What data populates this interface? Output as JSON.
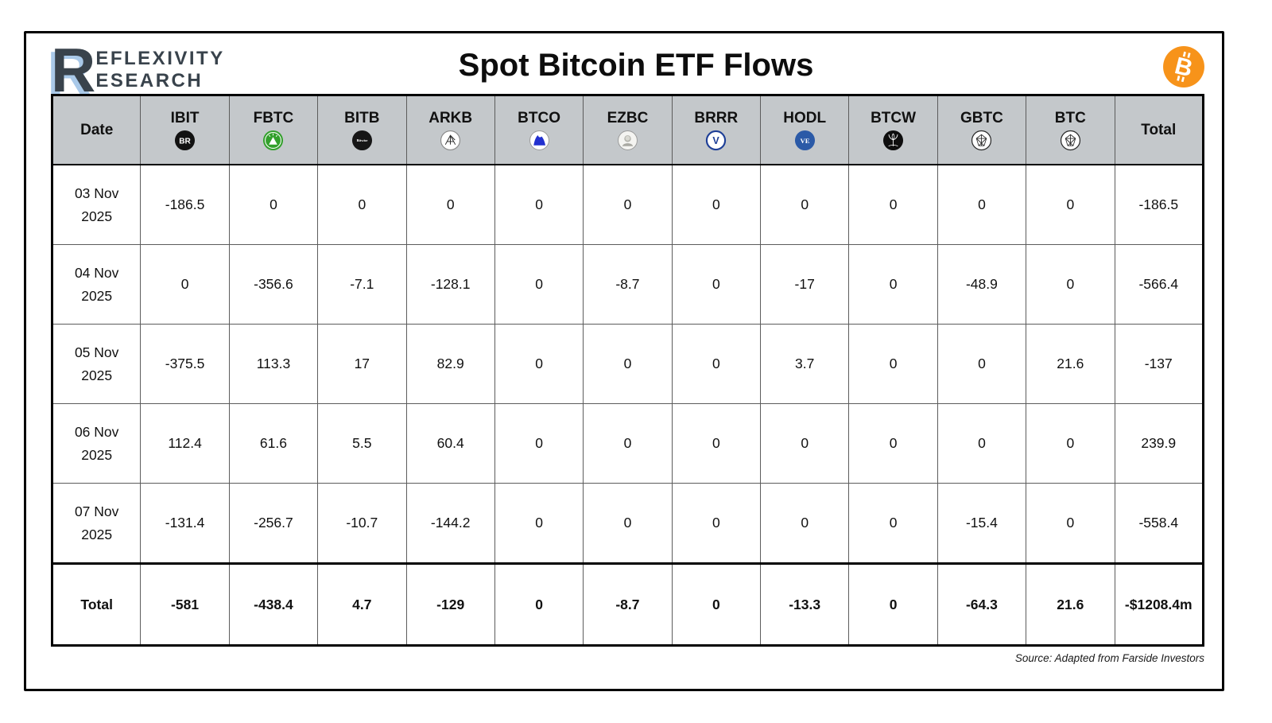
{
  "header": {
    "logo_letter": "R",
    "logo_line1": "EFLEXIVITY",
    "logo_line2": "ESEARCH",
    "title": "Spot Bitcoin ETF Flows",
    "bitcoin_icon": "bitcoin-icon"
  },
  "chart_data": {
    "type": "table",
    "title": "Spot Bitcoin ETF Flows",
    "columns": [
      "Date",
      "IBIT",
      "FBTC",
      "BITB",
      "ARKB",
      "BTCO",
      "EZBC",
      "BRRR",
      "HODL",
      "BTCW",
      "GBTC",
      "BTC",
      "Total"
    ],
    "column_icons": [
      null,
      "blackrock-icon",
      "fidelity-icon",
      "bitwise-icon",
      "ark-invest-icon",
      "invesco-icon",
      "franklin-templeton-icon",
      "valkyrie-icon",
      "vaneck-icon",
      "wisdomtree-icon",
      "grayscale-icon",
      "grayscale-mini-icon",
      null
    ],
    "rows": [
      {
        "date": "03 Nov 2025",
        "values": [
          -186.5,
          0,
          0,
          0,
          0,
          0,
          0,
          0,
          0,
          0,
          0
        ],
        "total": -186.5
      },
      {
        "date": "04 Nov 2025",
        "values": [
          0,
          -356.6,
          -7.1,
          -128.1,
          0,
          -8.7,
          0,
          -17,
          0,
          -48.9,
          0
        ],
        "total": -566.4
      },
      {
        "date": "05 Nov 2025",
        "values": [
          -375.5,
          113.3,
          17,
          82.9,
          0,
          0,
          0,
          3.7,
          0,
          0,
          21.6
        ],
        "total": -137
      },
      {
        "date": "06 Nov 2025",
        "values": [
          112.4,
          61.6,
          5.5,
          60.4,
          0,
          0,
          0,
          0,
          0,
          0,
          0
        ],
        "total": 239.9
      },
      {
        "date": "07 Nov 2025",
        "values": [
          -131.4,
          -256.7,
          -10.7,
          -144.2,
          0,
          0,
          0,
          0,
          0,
          -15.4,
          0
        ],
        "total": -558.4
      }
    ],
    "total_row": {
      "label": "Total",
      "values": [
        -581,
        -438.4,
        4.7,
        -129,
        0,
        -8.7,
        0,
        -13.3,
        0,
        -64.3,
        21.6
      ],
      "total": "-$1208.4m"
    }
  },
  "footer": {
    "source": "Source: Adapted from Farside Investors"
  },
  "colors": {
    "header_bg": "#c4c8cb",
    "frame_border": "#000000",
    "bitcoin_orange": "#f7931a",
    "logo_slate": "#39434c",
    "logo_blue_shadow": "#a9c9e9",
    "fidelity_green": "#33a02c",
    "vaneck_blue": "#2b5aa7",
    "valkyrie_blue": "#1e3f97",
    "invesco_blue": "#2230cf"
  }
}
